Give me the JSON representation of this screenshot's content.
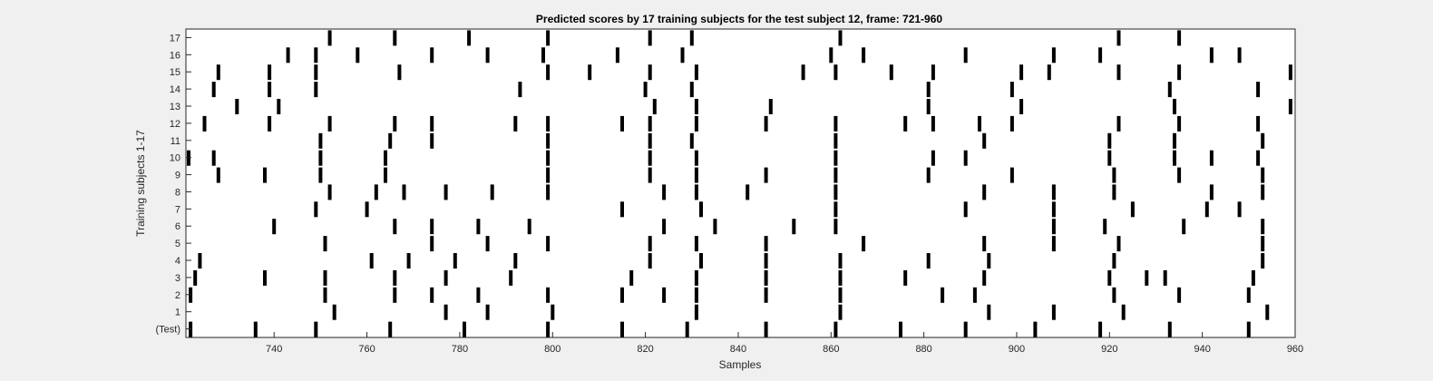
{
  "chart_data": {
    "type": "raster",
    "title": "Predicted scores by 17 training subjects for the test subject 12, frame: 721-960",
    "xlabel": "Samples",
    "ylabel": "Training subjects 1-17",
    "xlim": [
      721,
      960
    ],
    "x_ticks": [
      740,
      760,
      780,
      800,
      820,
      840,
      860,
      880,
      900,
      920,
      940,
      960
    ],
    "y_tick_labels": [
      "(Test)",
      "1",
      "2",
      "3",
      "4",
      "5",
      "6",
      "7",
      "8",
      "9",
      "10",
      "11",
      "12",
      "13",
      "14",
      "15",
      "16",
      "17"
    ],
    "grid": false,
    "mark_color": "#000000",
    "series": [
      {
        "name": "(Test)",
        "x": [
          722,
          736,
          749,
          765,
          781,
          799,
          815,
          829,
          846,
          861,
          875,
          889,
          904,
          918,
          933,
          950
        ]
      },
      {
        "name": "1",
        "x": [
          753,
          777,
          786,
          800,
          831,
          862,
          894,
          908,
          923,
          954
        ]
      },
      {
        "name": "2",
        "x": [
          722,
          751,
          766,
          774,
          784,
          799,
          815,
          824,
          831,
          846,
          862,
          884,
          891,
          921,
          935,
          950
        ]
      },
      {
        "name": "3",
        "x": [
          723,
          738,
          751,
          766,
          777,
          791,
          817,
          831,
          846,
          862,
          876,
          893,
          920,
          928,
          932,
          951
        ]
      },
      {
        "name": "4",
        "x": [
          724,
          761,
          769,
          779,
          792,
          821,
          832,
          846,
          862,
          881,
          894,
          921,
          953
        ]
      },
      {
        "name": "5",
        "x": [
          751,
          774,
          786,
          799,
          821,
          831,
          846,
          867,
          893,
          908,
          922,
          953
        ]
      },
      {
        "name": "6",
        "x": [
          740,
          766,
          774,
          784,
          795,
          824,
          835,
          852,
          861,
          908,
          919,
          936,
          953
        ]
      },
      {
        "name": "7",
        "x": [
          749,
          760,
          815,
          832,
          861,
          889,
          908,
          925,
          941,
          948
        ]
      },
      {
        "name": "8",
        "x": [
          752,
          762,
          768,
          777,
          787,
          799,
          824,
          831,
          842,
          861,
          893,
          908,
          921,
          942,
          953
        ]
      },
      {
        "name": "9",
        "x": [
          728,
          738,
          750,
          764,
          799,
          821,
          831,
          846,
          861,
          881,
          899,
          921,
          935,
          953
        ]
      },
      {
        "name": "10",
        "x": [
          721,
          727,
          750,
          764,
          799,
          821,
          831,
          861,
          882,
          889,
          920,
          934,
          942,
          952
        ]
      },
      {
        "name": "11",
        "x": [
          750,
          765,
          774,
          799,
          821,
          830,
          861,
          893,
          920,
          934,
          953
        ]
      },
      {
        "name": "12",
        "x": [
          725,
          739,
          752,
          766,
          774,
          792,
          799,
          815,
          821,
          831,
          846,
          861,
          876,
          882,
          892,
          899,
          922,
          935,
          952
        ]
      },
      {
        "name": "13",
        "x": [
          732,
          741,
          822,
          831,
          847,
          881,
          901,
          934,
          959
        ]
      },
      {
        "name": "14",
        "x": [
          727,
          739,
          749,
          793,
          820,
          830,
          881,
          899,
          933,
          952
        ]
      },
      {
        "name": "15",
        "x": [
          728,
          739,
          749,
          767,
          799,
          808,
          821,
          831,
          854,
          861,
          873,
          882,
          901,
          907,
          922,
          935,
          959
        ]
      },
      {
        "name": "16",
        "x": [
          743,
          749,
          758,
          774,
          786,
          798,
          814,
          828,
          860,
          867,
          889,
          908,
          918,
          942,
          948
        ]
      },
      {
        "name": "17",
        "x": [
          752,
          766,
          782,
          799,
          821,
          830,
          862,
          922,
          935
        ]
      }
    ]
  }
}
